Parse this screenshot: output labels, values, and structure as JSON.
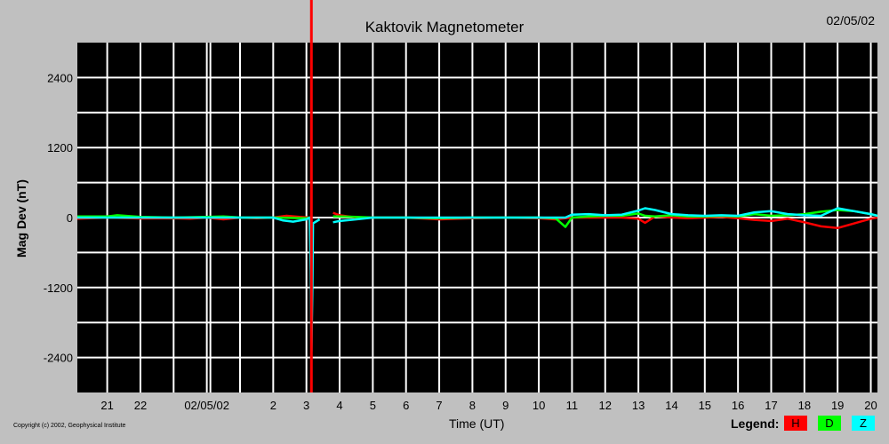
{
  "header": {
    "title": "Kaktovik Magnetometer",
    "date": "02/05/02"
  },
  "footer": {
    "copyright": "Copyright (c) 2002, Geophysical Institute",
    "legend_label": "Legend:",
    "legend": [
      {
        "key": "H",
        "color": "#ff0000"
      },
      {
        "key": "D",
        "color": "#00ff00"
      },
      {
        "key": "Z",
        "color": "#00ffff"
      }
    ]
  },
  "colors": {
    "background": "#c0c0c0",
    "plot_background": "#000000",
    "grid": "#ffffff",
    "marker": "#ff0000"
  },
  "chart_data": {
    "type": "line",
    "title": "Kaktovik Magnetometer",
    "xlabel": "Time (UT)",
    "ylabel": "Mag Dev (nT)",
    "ylim": [
      -3000,
      3000
    ],
    "yticks": [
      2400,
      1200,
      0,
      -1200,
      -2400
    ],
    "xlim": [
      20.1,
      44.2
    ],
    "x_unit": "hours since 00 UT 02/04/02",
    "xticks": [
      {
        "x": 21,
        "label": "21"
      },
      {
        "x": 22,
        "label": "22"
      },
      {
        "x": 24,
        "label": "02/05/02"
      },
      {
        "x": 26,
        "label": "2"
      },
      {
        "x": 27,
        "label": "3"
      },
      {
        "x": 28,
        "label": "4"
      },
      {
        "x": 29,
        "label": "5"
      },
      {
        "x": 30,
        "label": "6"
      },
      {
        "x": 31,
        "label": "7"
      },
      {
        "x": 32,
        "label": "8"
      },
      {
        "x": 33,
        "label": "9"
      },
      {
        "x": 34,
        "label": "10"
      },
      {
        "x": 35,
        "label": "11"
      },
      {
        "x": 36,
        "label": "12"
      },
      {
        "x": 37,
        "label": "13"
      },
      {
        "x": 38,
        "label": "14"
      },
      {
        "x": 39,
        "label": "15"
      },
      {
        "x": 40,
        "label": "16"
      },
      {
        "x": 41,
        "label": "17"
      },
      {
        "x": 42,
        "label": "18"
      },
      {
        "x": 43,
        "label": "19"
      },
      {
        "x": 44,
        "label": "20"
      }
    ],
    "grid": true,
    "day_boundary_x": 24,
    "current_time_x": 27.15,
    "legend_position": "bottom-right",
    "series": [
      {
        "name": "H",
        "color": "#ff0000",
        "x": [
          20.1,
          21,
          22,
          23,
          23.5,
          24,
          24.5,
          25,
          25.5,
          26,
          26.4,
          26.8,
          27.1,
          27.7,
          27.8,
          28,
          28.5,
          29,
          30,
          31,
          32,
          33,
          34,
          34.5,
          35,
          35.5,
          36,
          36.5,
          37,
          37.2,
          37.5,
          38,
          38.5,
          39,
          39.5,
          40,
          40.5,
          41,
          41.5,
          42,
          42.5,
          43,
          43.5,
          44,
          44.2
        ],
        "y": [
          -20,
          0,
          -15,
          -10,
          -20,
          0,
          -30,
          0,
          -10,
          0,
          30,
          10,
          0,
          null,
          80,
          40,
          0,
          0,
          0,
          -30,
          -10,
          0,
          -10,
          -30,
          0,
          0,
          0,
          0,
          -20,
          -90,
          20,
          0,
          -10,
          0,
          10,
          -10,
          -40,
          -60,
          -20,
          -80,
          -150,
          -180,
          -100,
          -20,
          0
        ]
      },
      {
        "name": "D",
        "color": "#00ff00",
        "x": [
          20.1,
          21,
          21.3,
          22,
          23,
          24,
          24.5,
          25,
          26,
          27,
          27.1,
          27.7,
          27.8,
          28,
          28.5,
          29,
          30,
          31,
          32,
          33,
          34,
          34.5,
          34.8,
          35,
          35.5,
          36,
          36.5,
          37,
          37.2,
          37.5,
          38,
          38.5,
          39,
          39.5,
          40,
          40.5,
          41,
          41.5,
          42,
          42.5,
          43,
          43.5,
          44,
          44.2
        ],
        "y": [
          20,
          20,
          40,
          10,
          0,
          10,
          20,
          0,
          0,
          -10,
          0,
          null,
          20,
          20,
          10,
          0,
          0,
          -10,
          0,
          0,
          0,
          -10,
          -160,
          0,
          20,
          30,
          30,
          70,
          30,
          20,
          40,
          20,
          20,
          30,
          20,
          60,
          30,
          40,
          60,
          100,
          130,
          110,
          60,
          30
        ]
      },
      {
        "name": "Z",
        "color": "#00ffff",
        "x": [
          20.1,
          21,
          22,
          23,
          24,
          25,
          26,
          26.3,
          26.6,
          27,
          27.1,
          27.13,
          27.15,
          27.18,
          27.2,
          27.4,
          27.7,
          27.8,
          28,
          28.5,
          29,
          30,
          31,
          32,
          33,
          34,
          34.5,
          34.8,
          35,
          35.5,
          36,
          36.5,
          37,
          37.2,
          37.5,
          38,
          38.5,
          39,
          39.5,
          40,
          40.5,
          41,
          41.5,
          42,
          42.5,
          43,
          43.5,
          44,
          44.2
        ],
        "y": [
          0,
          0,
          0,
          0,
          0,
          0,
          0,
          -50,
          -70,
          -30,
          0,
          -900,
          -2300,
          -1200,
          -100,
          -30,
          null,
          -80,
          -60,
          -30,
          0,
          0,
          0,
          0,
          0,
          0,
          0,
          0,
          50,
          60,
          40,
          50,
          120,
          160,
          130,
          60,
          40,
          30,
          40,
          30,
          90,
          110,
          60,
          40,
          30,
          160,
          110,
          60,
          30
        ]
      }
    ]
  }
}
